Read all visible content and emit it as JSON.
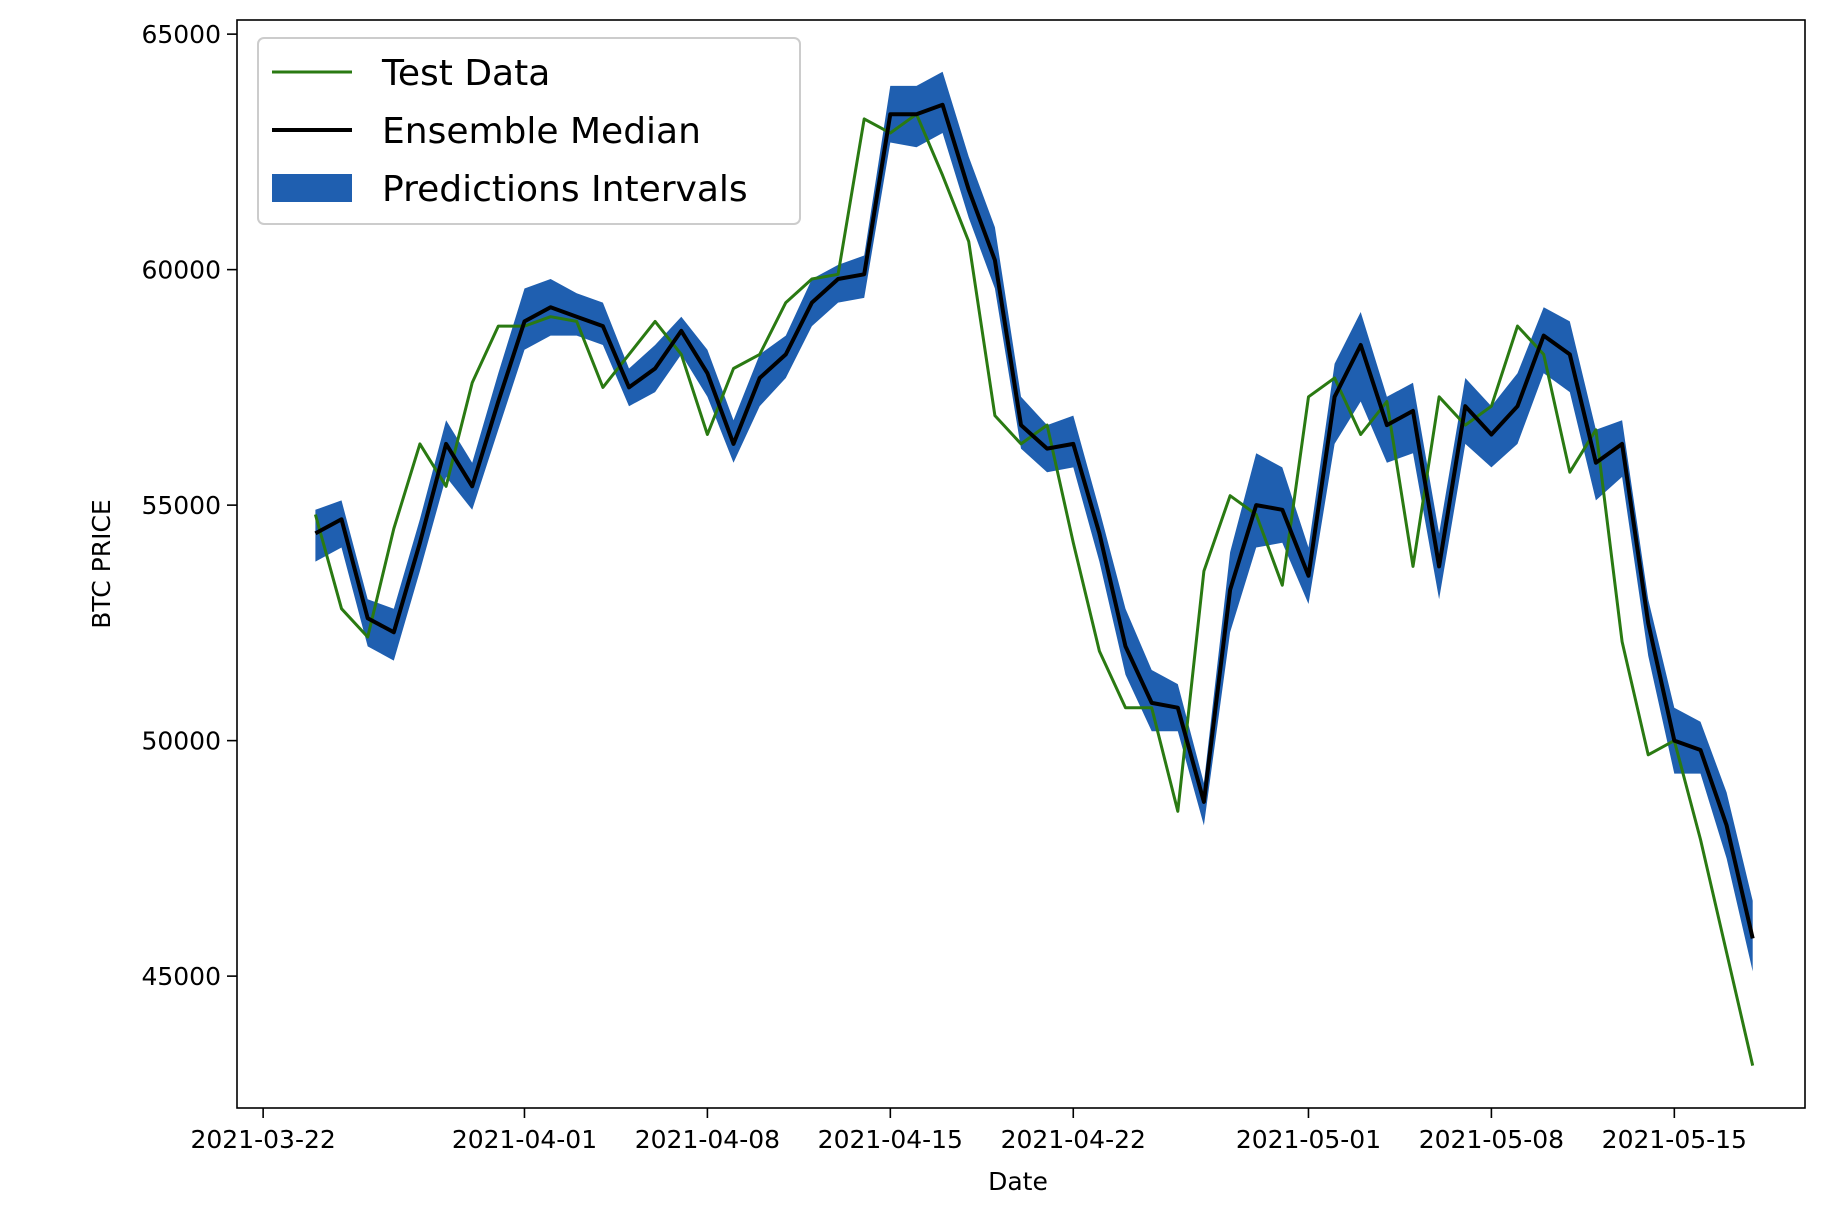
{
  "chart_data": {
    "type": "line",
    "title": "",
    "xlabel": "Date",
    "ylabel": "BTC PRICE",
    "x_ticks": [
      "2021-03-22",
      "2021-04-01",
      "2021-04-08",
      "2021-04-15",
      "2021-04-22",
      "2021-05-01",
      "2021-05-08",
      "2021-05-15"
    ],
    "y_ticks": [
      45000,
      50000,
      55000,
      60000,
      65000
    ],
    "xlim": [
      "2021-03-21",
      "2021-05-20"
    ],
    "ylim": [
      42200,
      65300
    ],
    "grid": false,
    "legend_position": "top-left",
    "x": [
      "2021-03-24",
      "2021-03-25",
      "2021-03-26",
      "2021-03-27",
      "2021-03-28",
      "2021-03-29",
      "2021-03-30",
      "2021-03-31",
      "2021-04-01",
      "2021-04-02",
      "2021-04-03",
      "2021-04-04",
      "2021-04-05",
      "2021-04-06",
      "2021-04-07",
      "2021-04-08",
      "2021-04-09",
      "2021-04-10",
      "2021-04-11",
      "2021-04-12",
      "2021-04-13",
      "2021-04-14",
      "2021-04-15",
      "2021-04-16",
      "2021-04-17",
      "2021-04-18",
      "2021-04-19",
      "2021-04-20",
      "2021-04-21",
      "2021-04-22",
      "2021-04-23",
      "2021-04-24",
      "2021-04-25",
      "2021-04-26",
      "2021-04-27",
      "2021-04-28",
      "2021-04-29",
      "2021-04-30",
      "2021-05-01",
      "2021-05-02",
      "2021-05-03",
      "2021-05-04",
      "2021-05-05",
      "2021-05-06",
      "2021-05-07",
      "2021-05-08",
      "2021-05-09",
      "2021-05-10",
      "2021-05-11",
      "2021-05-12",
      "2021-05-13",
      "2021-05-14",
      "2021-05-15",
      "2021-05-16",
      "2021-05-17",
      "2021-05-18"
    ],
    "series": [
      {
        "name": "Test Data",
        "color": "#2a7a12",
        "values": [
          54800,
          52800,
          52200,
          54500,
          56300,
          55400,
          57600,
          58800,
          58800,
          59000,
          58900,
          57500,
          58200,
          58900,
          58200,
          56500,
          57900,
          58200,
          59300,
          59800,
          59900,
          63200,
          62900,
          63300,
          62000,
          60600,
          56900,
          56300,
          56700,
          54200,
          51900,
          50700,
          50700,
          48500,
          53600,
          55200,
          54800,
          53300,
          57300,
          57700,
          56500,
          57200,
          53700,
          57300,
          56700,
          57100,
          58800,
          58200,
          55700,
          56600,
          52100,
          49700,
          50000,
          47900,
          45500,
          43100
        ]
      },
      {
        "name": "Ensemble Median",
        "color": "#000000",
        "values": [
          54400,
          54700,
          52600,
          52300,
          54200,
          56300,
          55400,
          57200,
          58900,
          59200,
          59000,
          58800,
          57500,
          57900,
          58700,
          57800,
          56300,
          57700,
          58200,
          59300,
          59800,
          59900,
          63300,
          63300,
          63500,
          61700,
          60200,
          56700,
          56200,
          56300,
          54400,
          52000,
          50800,
          50700,
          48700,
          53200,
          55000,
          54900,
          53500,
          57300,
          58400,
          56700,
          57000,
          53700,
          57100,
          56500,
          57100,
          58600,
          58200,
          55900,
          56300,
          52500,
          50000,
          49800,
          48200,
          45800
        ]
      },
      {
        "name": "Predictions Intervals",
        "color": "#1f5fb0",
        "lower": [
          53800,
          54100,
          52000,
          51700,
          53600,
          55600,
          54900,
          56600,
          58300,
          58600,
          58600,
          58400,
          57100,
          57400,
          58200,
          57300,
          55900,
          57100,
          57700,
          58800,
          59300,
          59400,
          62700,
          62600,
          62900,
          61100,
          59600,
          56200,
          55700,
          55800,
          53800,
          51400,
          50200,
          50200,
          48200,
          52300,
          54100,
          54200,
          52900,
          56300,
          57200,
          55900,
          56100,
          53000,
          56300,
          55800,
          56300,
          57800,
          57400,
          55100,
          55600,
          51800,
          49300,
          49300,
          47500,
          45100
        ],
        "upper": [
          54900,
          55100,
          53000,
          52800,
          54700,
          56800,
          55900,
          57800,
          59600,
          59800,
          59500,
          59300,
          57900,
          58400,
          59000,
          58300,
          56800,
          58200,
          58600,
          59800,
          60100,
          60300,
          63900,
          63900,
          64200,
          62400,
          60900,
          57300,
          56700,
          56900,
          54900,
          52800,
          51500,
          51200,
          49100,
          54000,
          56100,
          55800,
          54100,
          58000,
          59100,
          57300,
          57600,
          54400,
          57700,
          57100,
          57800,
          59200,
          58900,
          56600,
          56800,
          53000,
          50700,
          50400,
          48900,
          46600
        ]
      }
    ]
  }
}
